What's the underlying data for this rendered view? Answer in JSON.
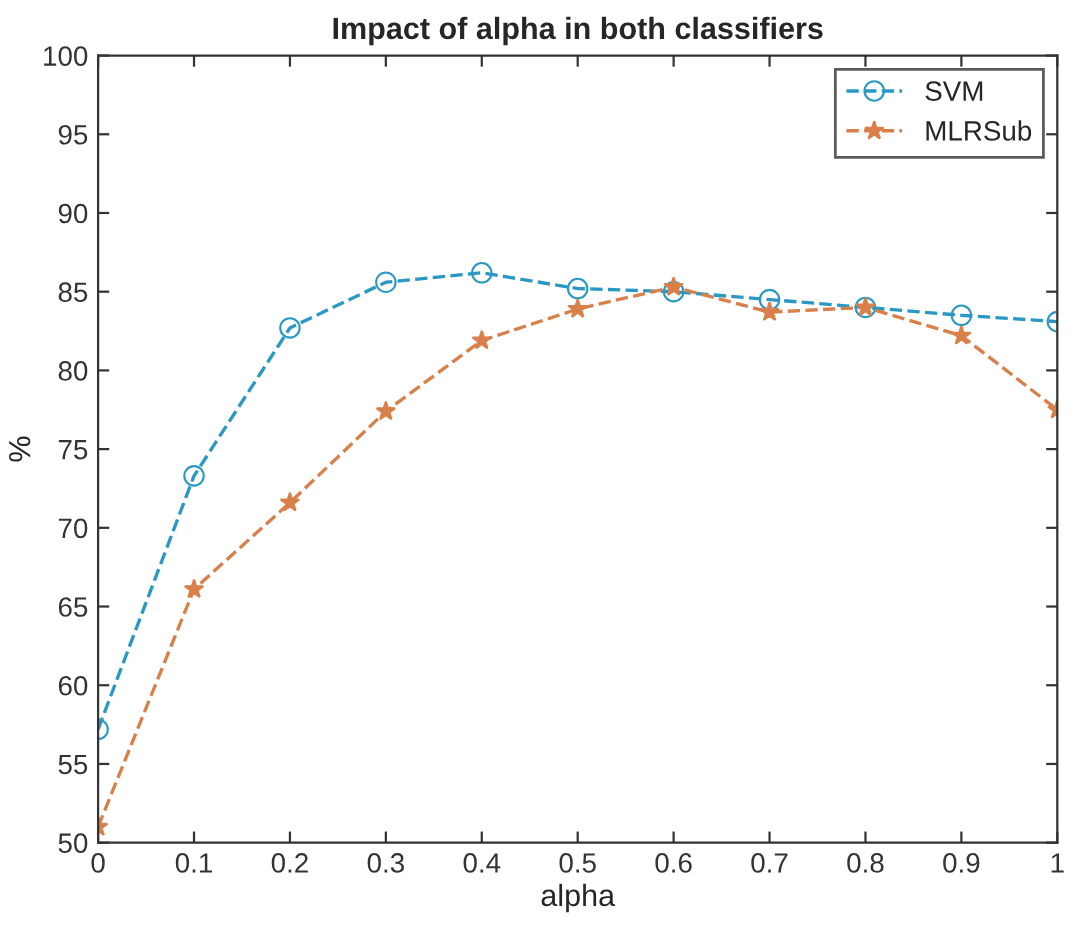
{
  "chart_data": {
    "type": "line",
    "title": "Impact of alpha in both classifiers",
    "xlabel": "alpha",
    "ylabel": "%",
    "x": [
      0,
      0.1,
      0.2,
      0.3,
      0.4,
      0.5,
      0.6,
      0.7,
      0.8,
      0.9,
      1
    ],
    "series": [
      {
        "name": "SVM",
        "color": "#2a98c4",
        "marker": "circle",
        "values": [
          57.2,
          73.3,
          82.7,
          85.6,
          86.2,
          85.2,
          85.0,
          84.5,
          84.0,
          83.5,
          83.1
        ]
      },
      {
        "name": "MLRSub",
        "color": "#d9804a",
        "marker": "star",
        "values": [
          51.0,
          66.1,
          71.6,
          77.4,
          81.9,
          83.9,
          85.3,
          83.7,
          84.0,
          82.2,
          77.5
        ]
      }
    ],
    "line_style": "dashed",
    "xlim": [
      0,
      1
    ],
    "ylim": [
      50,
      100
    ],
    "xticks": [
      0,
      0.1,
      0.2,
      0.3,
      0.4,
      0.5,
      0.6,
      0.7,
      0.8,
      0.9,
      1
    ],
    "yticks": [
      50,
      55,
      60,
      65,
      70,
      75,
      80,
      85,
      90,
      95,
      100
    ],
    "legend": "top right",
    "grid": false
  }
}
